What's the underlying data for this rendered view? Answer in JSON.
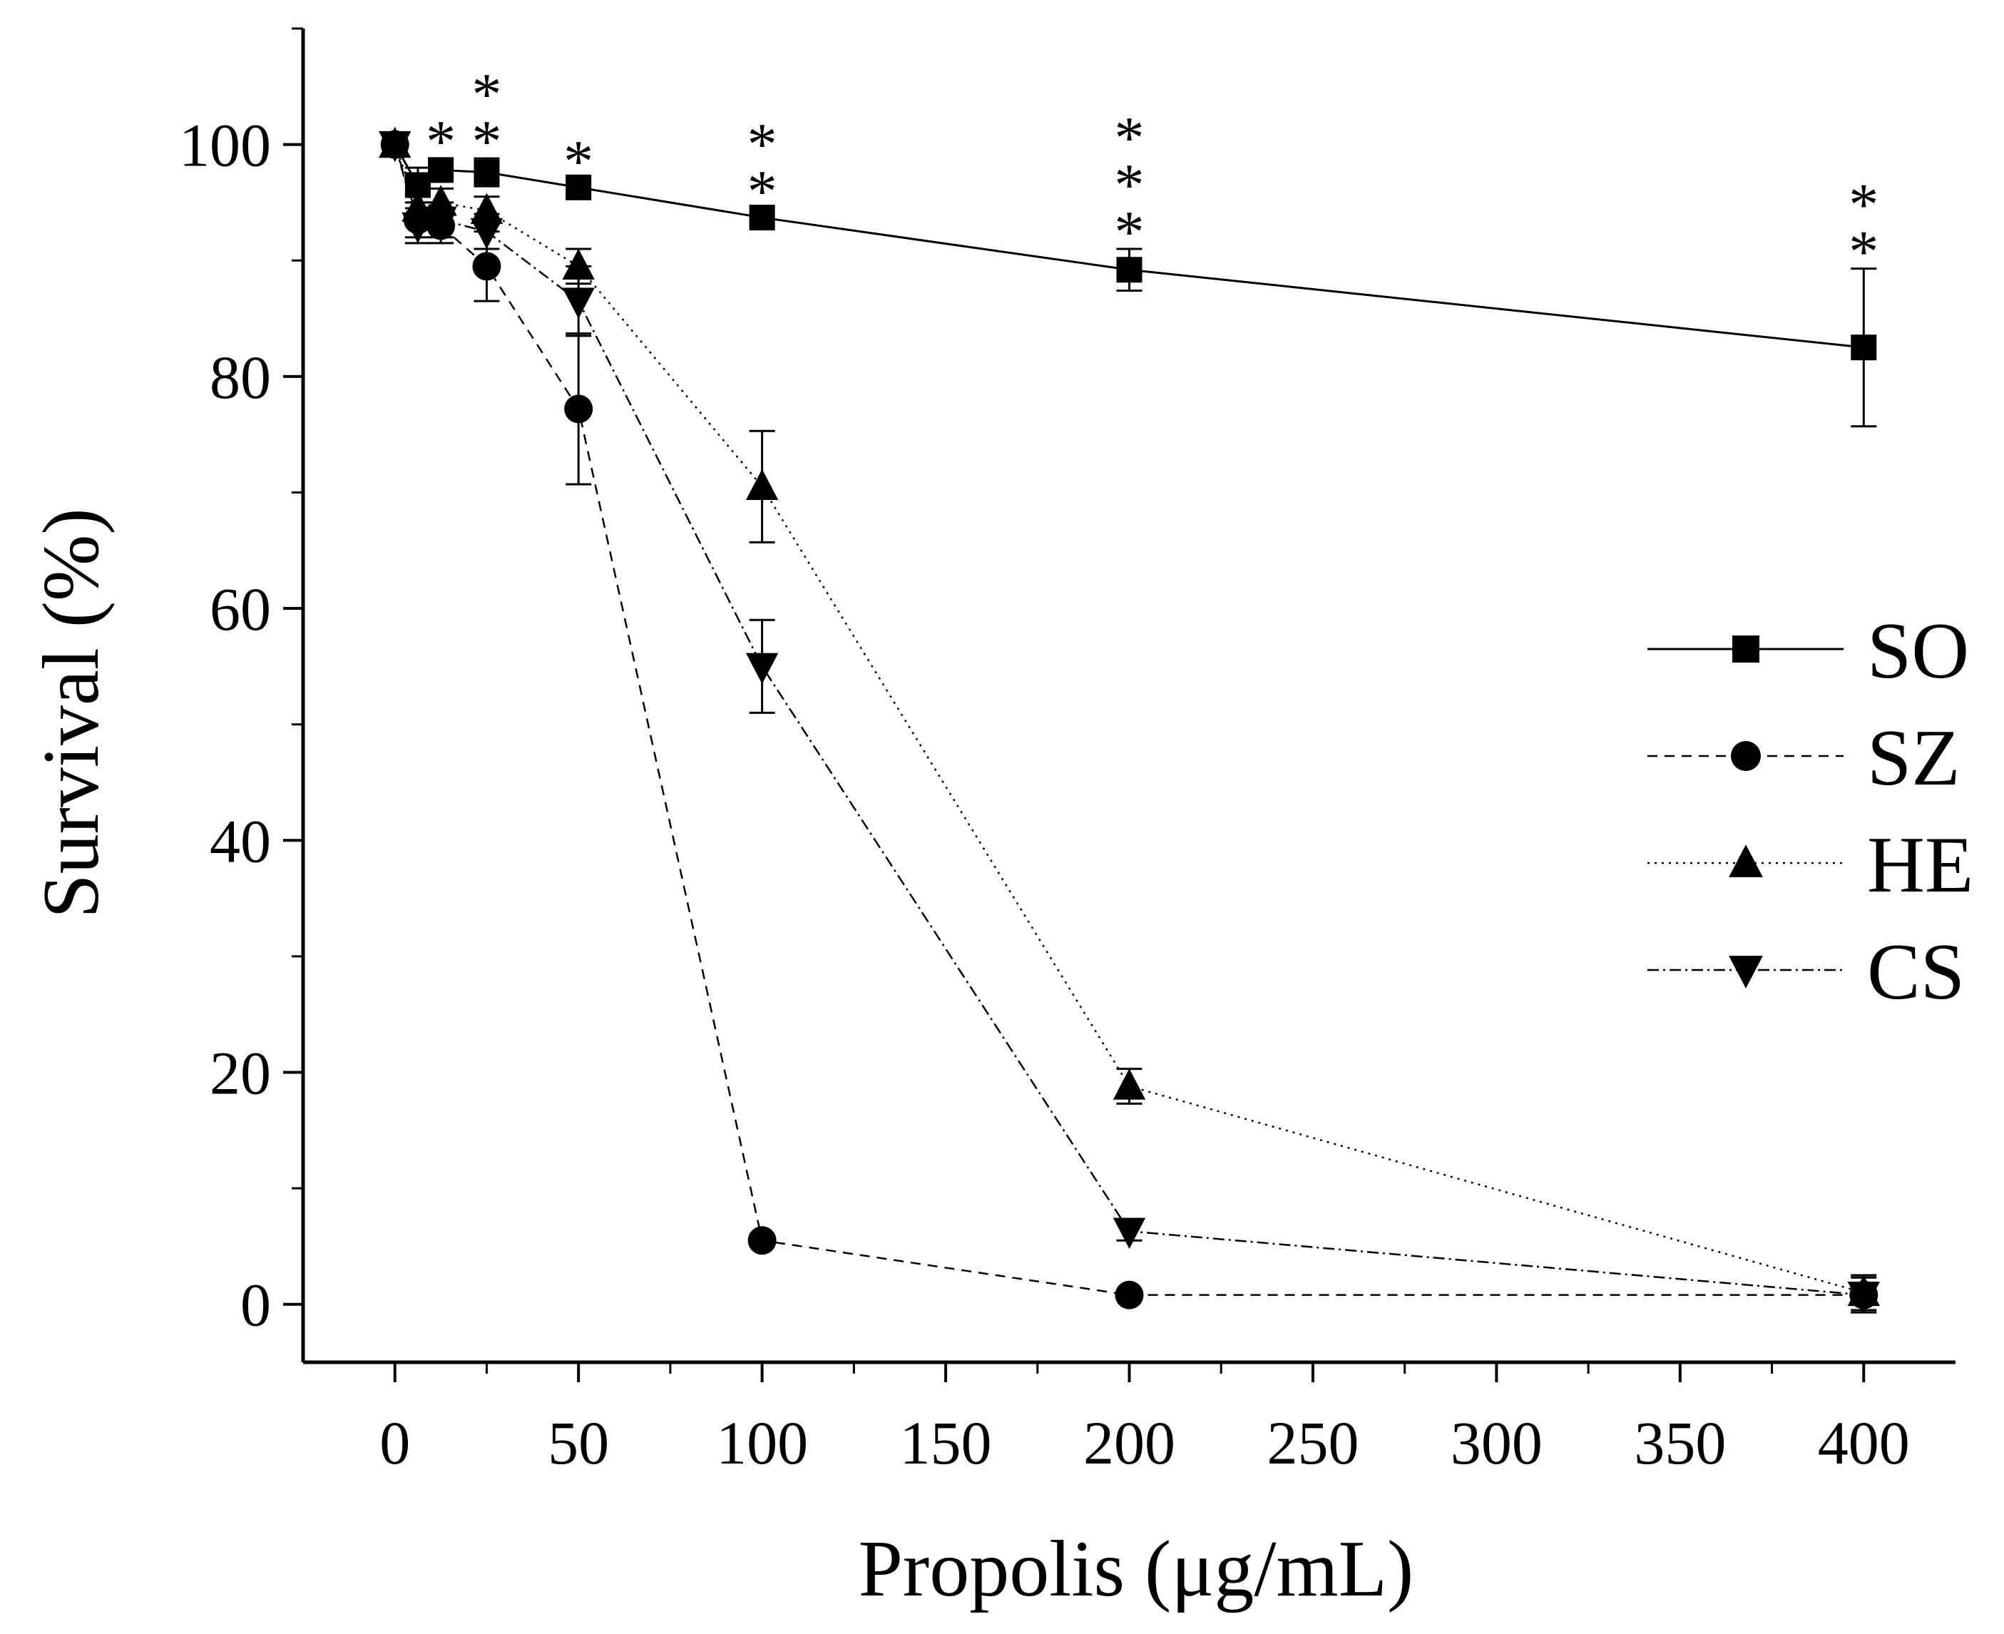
{
  "chart_data": {
    "type": "line",
    "title": "",
    "xlabel": "Propolis (μg/mL)",
    "ylabel": "Survival (%)",
    "x_ticks": [
      0,
      50,
      100,
      150,
      200,
      250,
      300,
      350,
      400
    ],
    "x_tick_labels": [
      "0",
      "50",
      "100",
      "150",
      "200",
      "250",
      "300",
      "350",
      "400"
    ],
    "y_ticks": [
      0,
      20,
      40,
      60,
      80,
      100
    ],
    "y_tick_labels": [
      "0",
      "20",
      "40",
      "60",
      "80",
      "100"
    ],
    "xlim": [
      -25,
      425
    ],
    "ylim": [
      -5,
      110
    ],
    "legend_position": "right",
    "series": [
      {
        "name": "SO",
        "marker": "square",
        "line": "solid",
        "x": [
          0,
          6.25,
          12.5,
          25,
          50,
          100,
          200,
          400
        ],
        "values": [
          100,
          96.5,
          97.8,
          97.6,
          96.3,
          93.7,
          89.2,
          82.5
        ],
        "errors": [
          0,
          1.5,
          1,
          1.2,
          0.8,
          0.8,
          1.8,
          6.8
        ]
      },
      {
        "name": "SZ",
        "marker": "circle",
        "line": "dashed",
        "x": [
          0,
          6.25,
          12.5,
          25,
          50,
          100,
          200,
          400
        ],
        "values": [
          100,
          93.5,
          93,
          89.5,
          77.2,
          5.5,
          0.8,
          0.8
        ],
        "errors": [
          0,
          1.5,
          1.5,
          3,
          6.5,
          0.5,
          0.3,
          0.3
        ]
      },
      {
        "name": "HE",
        "marker": "triangle-up",
        "line": "dotted",
        "x": [
          0,
          6.25,
          12.5,
          25,
          50,
          100,
          200,
          400
        ],
        "values": [
          100,
          94.5,
          95,
          94.3,
          89.5,
          70.5,
          18.8,
          1
        ],
        "errors": [
          0,
          1.2,
          1.2,
          1.2,
          1.5,
          4.8,
          1.5,
          1.5
        ]
      },
      {
        "name": "CS",
        "marker": "triangle-down",
        "line": "dash-dot",
        "x": [
          0,
          6.25,
          12.5,
          25,
          50,
          100,
          200,
          400
        ],
        "values": [
          100,
          93,
          93.5,
          92.5,
          86.5,
          55,
          6.3,
          0.8
        ],
        "errors": [
          0,
          1.5,
          1.5,
          1.5,
          3,
          4,
          0.8,
          1.5
        ]
      }
    ],
    "significance": [
      {
        "x": 12.5,
        "label": "*",
        "count": 1
      },
      {
        "x": 25,
        "label": "**",
        "count": 2
      },
      {
        "x": 50,
        "label": "*",
        "count": 1
      },
      {
        "x": 100,
        "label": "**",
        "count": 2
      },
      {
        "x": 200,
        "label": "***",
        "count": 3
      },
      {
        "x": 400,
        "label": "**",
        "count": 2
      }
    ]
  }
}
